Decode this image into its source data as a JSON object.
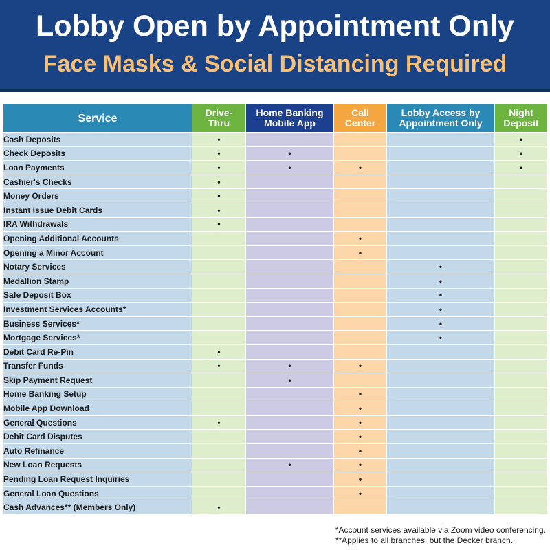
{
  "header": {
    "title": "Lobby Open by Appointment Only",
    "subtitle": "Face Masks & Social Distancing Required"
  },
  "table": {
    "columns": [
      {
        "label": "Service",
        "color": "#2a8ab5"
      },
      {
        "label": "Drive-\nThru",
        "color": "#6cb33f"
      },
      {
        "label": "Home Banking\nMobile App",
        "color": "#1d3f8f"
      },
      {
        "label": "Call\nCenter",
        "color": "#f4a640"
      },
      {
        "label": "Lobby Access by\nAppointment Only",
        "color": "#2a8ab5"
      },
      {
        "label": "Night\nDeposit",
        "color": "#6cb33f"
      }
    ],
    "mark_symbol": "•",
    "rows": [
      {
        "service": "Cash Deposits",
        "marks": [
          true,
          false,
          false,
          false,
          true
        ]
      },
      {
        "service": "Check Deposits",
        "marks": [
          true,
          true,
          false,
          false,
          true
        ]
      },
      {
        "service": "Loan Payments",
        "marks": [
          true,
          true,
          true,
          false,
          true
        ]
      },
      {
        "service": "Cashier's Checks",
        "marks": [
          true,
          false,
          false,
          false,
          false
        ]
      },
      {
        "service": "Money Orders",
        "marks": [
          true,
          false,
          false,
          false,
          false
        ]
      },
      {
        "service": "Instant Issue Debit Cards",
        "marks": [
          true,
          false,
          false,
          false,
          false
        ]
      },
      {
        "service": "IRA Withdrawals",
        "marks": [
          true,
          false,
          false,
          false,
          false
        ]
      },
      {
        "service": "Opening Additional Accounts",
        "marks": [
          false,
          false,
          true,
          false,
          false
        ]
      },
      {
        "service": "Opening a Minor Account",
        "marks": [
          false,
          false,
          true,
          false,
          false
        ]
      },
      {
        "service": "Notary Services",
        "marks": [
          false,
          false,
          false,
          true,
          false
        ]
      },
      {
        "service": "Medallion Stamp",
        "marks": [
          false,
          false,
          false,
          true,
          false
        ]
      },
      {
        "service": "Safe Deposit Box",
        "marks": [
          false,
          false,
          false,
          true,
          false
        ]
      },
      {
        "service": "Investment Services Accounts*",
        "marks": [
          false,
          false,
          false,
          true,
          false
        ]
      },
      {
        "service": "Business Services*",
        "marks": [
          false,
          false,
          false,
          true,
          false
        ]
      },
      {
        "service": "Mortgage Services*",
        "marks": [
          false,
          false,
          false,
          true,
          false
        ]
      },
      {
        "service": "Debit Card Re-Pin",
        "marks": [
          true,
          false,
          false,
          false,
          false
        ]
      },
      {
        "service": "Transfer Funds",
        "marks": [
          true,
          true,
          true,
          false,
          false
        ]
      },
      {
        "service": "Skip Payment Request",
        "marks": [
          false,
          true,
          false,
          false,
          false
        ]
      },
      {
        "service": "Home Banking Setup",
        "marks": [
          false,
          false,
          true,
          false,
          false
        ]
      },
      {
        "service": "Mobile App Download",
        "marks": [
          false,
          false,
          true,
          false,
          false
        ]
      },
      {
        "service": "General Questions",
        "marks": [
          true,
          false,
          true,
          false,
          false
        ]
      },
      {
        "service": "Debit Card Disputes",
        "marks": [
          false,
          false,
          true,
          false,
          false
        ]
      },
      {
        "service": "Auto Refinance",
        "marks": [
          false,
          false,
          true,
          false,
          false
        ]
      },
      {
        "service": "New Loan Requests",
        "marks": [
          false,
          true,
          true,
          false,
          false
        ]
      },
      {
        "service": "Pending Loan Request Inquiries",
        "marks": [
          false,
          false,
          true,
          false,
          false
        ]
      },
      {
        "service": "General Loan Questions",
        "marks": [
          false,
          false,
          true,
          false,
          false
        ]
      },
      {
        "service": "Cash Advances** (Members Only)",
        "marks": [
          true,
          false,
          false,
          false,
          false
        ]
      }
    ]
  },
  "footnotes": [
    "*Account services available via Zoom video conferencing.",
    "**Applies to all branches, but the Decker branch."
  ]
}
